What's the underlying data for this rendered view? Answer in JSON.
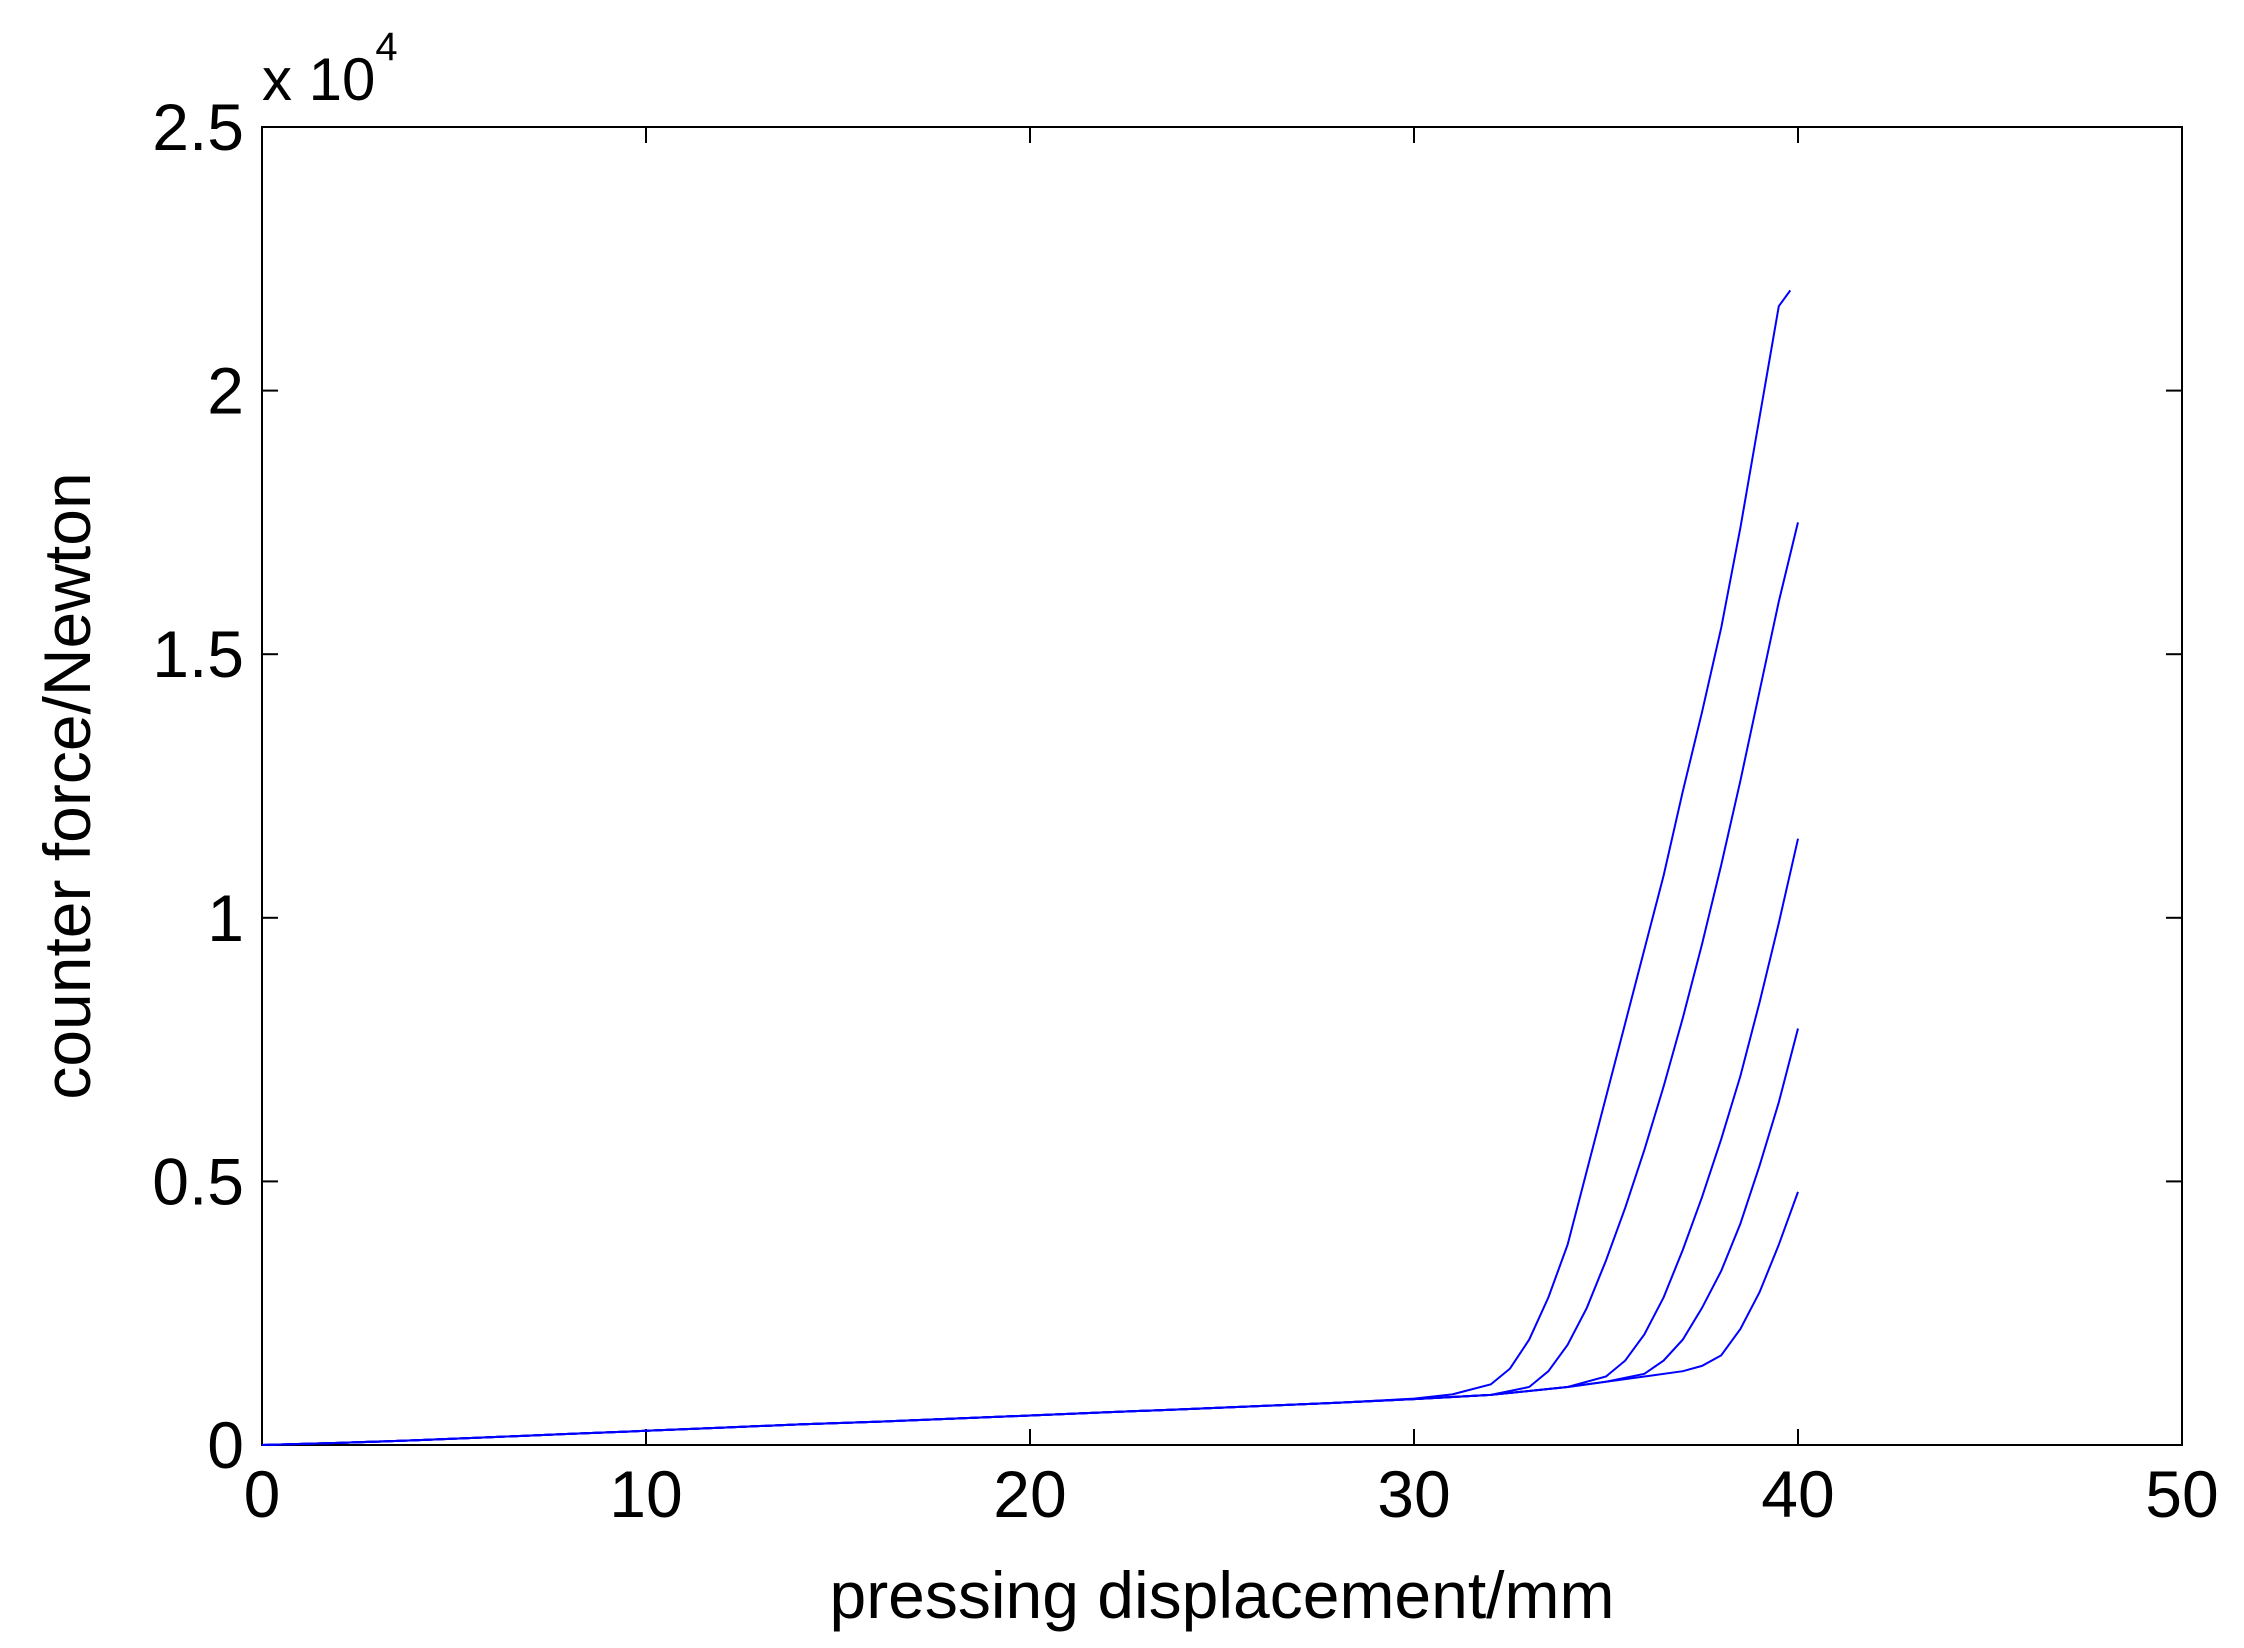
{
  "chart_data": {
    "type": "line",
    "title": "",
    "xlabel": "pressing displacement/mm",
    "ylabel": "counter force/Newton",
    "y_multiplier": {
      "base": "x 10",
      "exponent": "4"
    },
    "xlim": [
      0,
      50
    ],
    "ylim": [
      0,
      25000
    ],
    "xticks": [
      0,
      10,
      20,
      30,
      40,
      50
    ],
    "xtick_labels": [
      "0",
      "10",
      "20",
      "30",
      "40",
      "50"
    ],
    "yticks": [
      0,
      5000,
      10000,
      15000,
      20000,
      25000
    ],
    "ytick_labels": [
      "0",
      "0.5",
      "1",
      "1.5",
      "2",
      "2.5"
    ],
    "grid": false,
    "line_color": "#0000ff",
    "series": [
      {
        "x": [
          0,
          2,
          4,
          6,
          8,
          10,
          12,
          14,
          16,
          18,
          20,
          22,
          24,
          26,
          28,
          30,
          31,
          32,
          32.5,
          33,
          33.5,
          34,
          34.5,
          35,
          35.5,
          36,
          36.5,
          37,
          37.5,
          38,
          38.5,
          39,
          39.5,
          39.8
        ],
        "y": [
          0,
          40,
          90,
          150,
          210,
          270,
          330,
          390,
          440,
          500,
          560,
          620,
          680,
          740,
          800,
          880,
          960,
          1150,
          1450,
          2000,
          2800,
          3800,
          5200,
          6600,
          8000,
          9400,
          10800,
          12400,
          13900,
          15500,
          17400,
          19500,
          21600,
          21900
        ]
      },
      {
        "x": [
          0,
          2,
          4,
          6,
          8,
          10,
          12,
          14,
          16,
          18,
          20,
          22,
          24,
          26,
          28,
          30,
          32,
          33,
          33.5,
          34,
          34.5,
          35,
          35.5,
          36,
          36.5,
          37,
          37.5,
          38,
          38.5,
          39,
          39.5,
          40
        ],
        "y": [
          0,
          40,
          90,
          150,
          210,
          270,
          330,
          390,
          440,
          500,
          560,
          620,
          680,
          740,
          800,
          870,
          950,
          1100,
          1400,
          1900,
          2600,
          3500,
          4500,
          5600,
          6800,
          8100,
          9500,
          11000,
          12600,
          14300,
          16000,
          17500
        ]
      },
      {
        "x": [
          0,
          2,
          4,
          6,
          8,
          10,
          12,
          14,
          16,
          18,
          20,
          22,
          24,
          26,
          28,
          30,
          32,
          34,
          35,
          35.5,
          36,
          36.5,
          37,
          37.5,
          38,
          38.5,
          39,
          39.5,
          40
        ],
        "y": [
          0,
          40,
          90,
          150,
          210,
          270,
          330,
          390,
          440,
          500,
          560,
          620,
          680,
          740,
          800,
          870,
          950,
          1100,
          1300,
          1600,
          2100,
          2800,
          3700,
          4700,
          5800,
          7000,
          8400,
          9900,
          11500
        ]
      },
      {
        "x": [
          0,
          2,
          4,
          6,
          8,
          10,
          12,
          14,
          16,
          18,
          20,
          22,
          24,
          26,
          28,
          30,
          32,
          34,
          35,
          36,
          36.5,
          37,
          37.5,
          38,
          38.5,
          39,
          39.5,
          40
        ],
        "y": [
          0,
          40,
          90,
          150,
          210,
          270,
          330,
          390,
          440,
          500,
          560,
          620,
          680,
          740,
          800,
          870,
          950,
          1100,
          1200,
          1350,
          1600,
          2000,
          2600,
          3300,
          4200,
          5300,
          6500,
          7900
        ]
      },
      {
        "x": [
          0,
          2,
          4,
          6,
          8,
          10,
          12,
          14,
          16,
          18,
          20,
          22,
          24,
          26,
          28,
          30,
          32,
          34,
          35,
          36,
          37,
          37.5,
          38,
          38.5,
          39,
          39.5,
          40
        ],
        "y": [
          0,
          40,
          90,
          150,
          210,
          270,
          330,
          390,
          440,
          500,
          560,
          620,
          680,
          740,
          800,
          870,
          950,
          1100,
          1200,
          1300,
          1400,
          1500,
          1700,
          2200,
          2900,
          3800,
          4800
        ]
      }
    ]
  }
}
